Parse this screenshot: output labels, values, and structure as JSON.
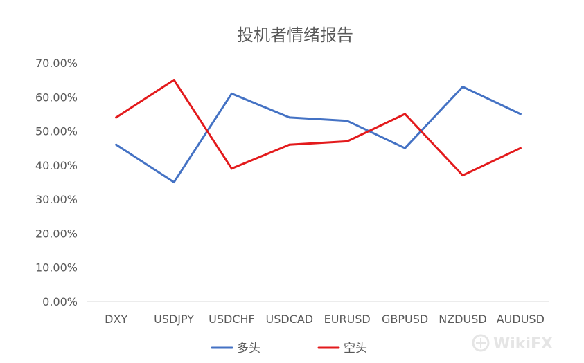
{
  "chart_data": {
    "type": "line",
    "title": "投机者情绪报告",
    "categories": [
      "DXY",
      "USDJPY",
      "USDCHF",
      "USDCAD",
      "EURUSD",
      "GBPUSD",
      "NZDUSD",
      "AUDUSD"
    ],
    "series": [
      {
        "name": "多头",
        "color": "#4472c4",
        "values": [
          46,
          35,
          61,
          54,
          53,
          45,
          63,
          55
        ]
      },
      {
        "name": "空头",
        "color": "#e31a1c",
        "values": [
          54,
          65,
          39,
          46,
          47,
          55,
          37,
          45
        ]
      }
    ],
    "ylim": [
      0,
      70
    ],
    "y_ticks": [
      0,
      10,
      20,
      30,
      40,
      50,
      60,
      70
    ],
    "y_tick_labels": [
      "0.00%",
      "10.00%",
      "20.00%",
      "30.00%",
      "40.00%",
      "50.00%",
      "60.00%",
      "70.00%"
    ],
    "grid": false,
    "legend_position": "bottom"
  },
  "watermark": {
    "text": "WikiFX",
    "icon": "wikifx-logo-icon"
  }
}
